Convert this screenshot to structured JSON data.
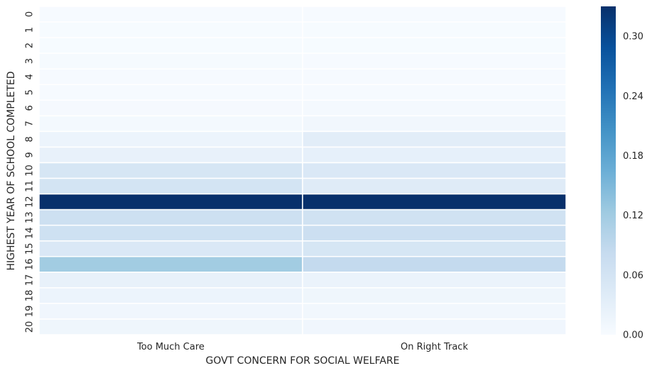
{
  "chart_data": {
    "type": "heatmap",
    "xlabel": "GOVT CONCERN FOR SOCIAL WELFARE",
    "ylabel": "HIGHEST YEAR OF SCHOOL COMPLETED",
    "columns": [
      "Too Much Care",
      "On Right Track"
    ],
    "rows": [
      "0",
      "1",
      "2",
      "3",
      "4",
      "5",
      "6",
      "7",
      "8",
      "9",
      "10",
      "11",
      "12",
      "13",
      "14",
      "15",
      "16",
      "17",
      "18",
      "19",
      "20"
    ],
    "values": [
      [
        0.002,
        0.002
      ],
      [
        0.001,
        0.001
      ],
      [
        0.001,
        0.001
      ],
      [
        0.003,
        0.002
      ],
      [
        0.002,
        0.002
      ],
      [
        0.002,
        0.002
      ],
      [
        0.004,
        0.005
      ],
      [
        0.006,
        0.01
      ],
      [
        0.018,
        0.035
      ],
      [
        0.025,
        0.028
      ],
      [
        0.055,
        0.048
      ],
      [
        0.06,
        0.04
      ],
      [
        0.33,
        0.33
      ],
      [
        0.07,
        0.065
      ],
      [
        0.068,
        0.072
      ],
      [
        0.048,
        0.055
      ],
      [
        0.12,
        0.085
      ],
      [
        0.025,
        0.02
      ],
      [
        0.018,
        0.014
      ],
      [
        0.012,
        0.01
      ],
      [
        0.014,
        0.012
      ]
    ],
    "colorbar": {
      "min": 0.0,
      "max": 0.33,
      "ticks": [
        "0.00",
        "0.06",
        "0.12",
        "0.18",
        "0.24",
        "0.30"
      ],
      "colormap": "Blues"
    },
    "grid": false
  }
}
